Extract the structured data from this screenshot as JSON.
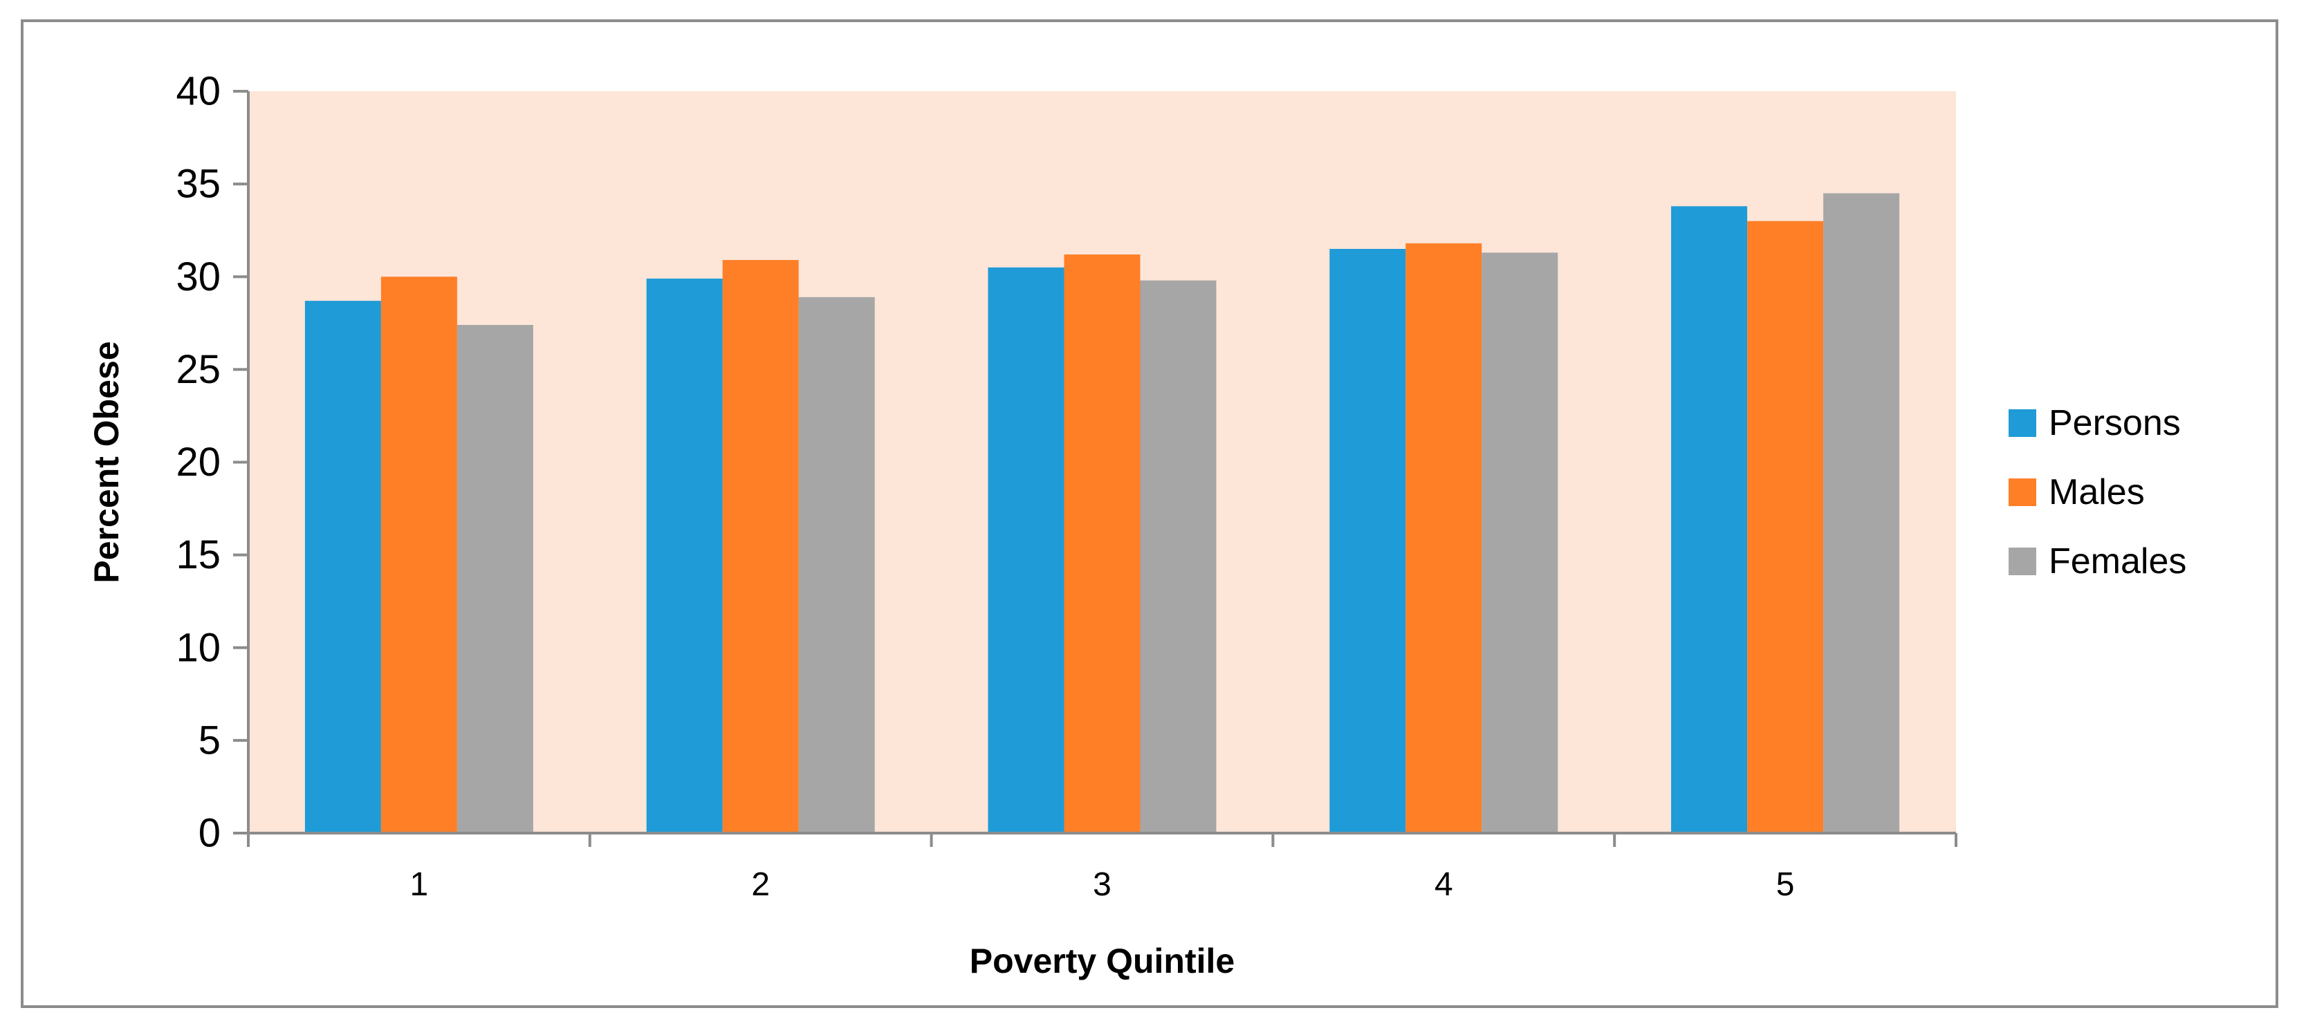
{
  "chart_data": {
    "type": "bar",
    "title": "",
    "xlabel": "Poverty Quintile",
    "ylabel": "Percent Obese",
    "categories": [
      "1",
      "2",
      "3",
      "4",
      "5"
    ],
    "series": [
      {
        "name": "Persons",
        "color": "#1f9bd7",
        "values": [
          28.7,
          29.9,
          30.5,
          31.5,
          33.8
        ]
      },
      {
        "name": "Males",
        "color": "#ff7f27",
        "values": [
          30.0,
          30.9,
          31.2,
          31.8,
          33.0
        ]
      },
      {
        "name": "Females",
        "color": "#a6a6a6",
        "values": [
          27.4,
          28.9,
          29.8,
          31.3,
          34.5
        ]
      }
    ],
    "ylim": [
      0,
      40
    ],
    "yticks": [
      0,
      5,
      10,
      15,
      20,
      25,
      30,
      35,
      40
    ],
    "ytick_labels": [
      "0",
      "5",
      "10",
      "15",
      "20",
      "25",
      "30",
      "35",
      "40"
    ],
    "grid": false,
    "plot_background": "#fde5d8",
    "legend_position": "right"
  }
}
